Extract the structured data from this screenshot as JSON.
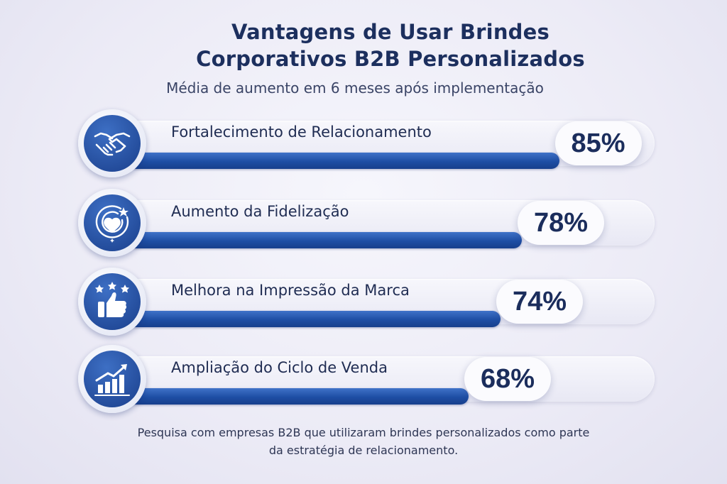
{
  "title_line1": "Vantagens de Usar Brindes",
  "title_line2": "Corporativos B2B Personalizados",
  "subtitle": "Média de aumento em 6 meses após implementação",
  "footnote_line1": "Pesquisa com empresas B2B que utilizaram brindes personalizados como parte",
  "footnote_line2": "da estratégia de relacionamento.",
  "colors": {
    "bar": "#1e4ea4",
    "icon": "#1a3f8c",
    "text": "#1c2f5e"
  },
  "chart_data": {
    "type": "bar",
    "orientation": "horizontal",
    "title": "Vantagens de Usar Brindes Corporativos B2B Personalizados",
    "subtitle": "Média de aumento em 6 meses após implementação",
    "categories": [
      "Fortalecimento de Relacionamento",
      "Aumento da Fidelização",
      "Melhora na Impressão da Marca",
      "Ampliação do Ciclo de Venda"
    ],
    "values": [
      85,
      78,
      74,
      68
    ],
    "value_labels": [
      "85%",
      "78%",
      "74%",
      "68%"
    ],
    "icons": [
      "handshake-icon",
      "heart-target-icon",
      "thumbs-up-stars-icon",
      "growth-chart-icon"
    ],
    "unit": "%",
    "xlim": [
      0,
      100
    ],
    "grid": false,
    "legend": "none"
  }
}
